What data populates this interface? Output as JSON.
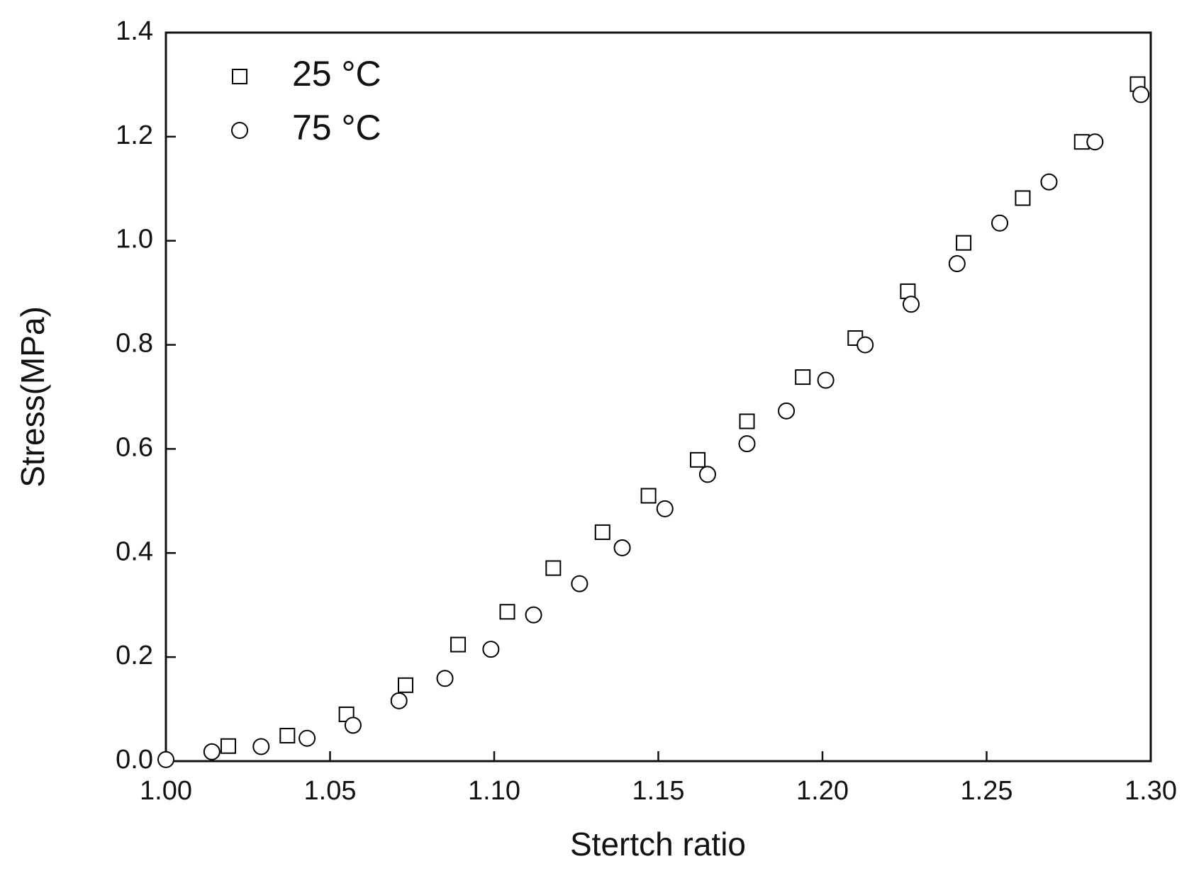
{
  "chart_data": {
    "type": "scatter",
    "x_label": "Stertch ratio",
    "y_label": "Stress(MPa)",
    "xlim": [
      1.0,
      1.3
    ],
    "ylim": [
      0,
      1.4
    ],
    "xticks": [
      {
        "value": 1.0,
        "label": "1.00"
      },
      {
        "value": 1.05,
        "label": "1.05"
      },
      {
        "value": 1.1,
        "label": "1.10"
      },
      {
        "value": 1.15,
        "label": "1.15"
      },
      {
        "value": 1.2,
        "label": "1.20"
      },
      {
        "value": 1.25,
        "label": "1.25"
      },
      {
        "value": 1.3,
        "label": "1.30"
      }
    ],
    "yticks": [
      {
        "value": 0,
        "label": "0.0"
      },
      0.2,
      0.4,
      0.6,
      0.8,
      {
        "value": 1,
        "label": "1.0"
      },
      1.2,
      1.4
    ],
    "legend": "top-left",
    "series": [
      {
        "name": "25 °C",
        "marker": "square",
        "color": "#000000",
        "x": [
          1.019,
          1.037,
          1.055,
          1.073,
          1.089,
          1.104,
          1.118,
          1.133,
          1.147,
          1.162,
          1.177,
          1.194,
          1.21,
          1.226,
          1.243,
          1.261,
          1.279,
          1.296
        ],
        "values": [
          0.029,
          0.049,
          0.09,
          0.146,
          0.224,
          0.287,
          0.371,
          0.44,
          0.51,
          0.579,
          0.653,
          0.738,
          0.813,
          0.903,
          0.996,
          1.082,
          1.19,
          1.301
        ]
      },
      {
        "name": "75 °C",
        "marker": "circle",
        "color": "#000000",
        "x": [
          1.0,
          1.014,
          1.029,
          1.043,
          1.057,
          1.071,
          1.085,
          1.099,
          1.112,
          1.126,
          1.139,
          1.152,
          1.165,
          1.177,
          1.189,
          1.201,
          1.213,
          1.227,
          1.241,
          1.254,
          1.269,
          1.283,
          1.297
        ],
        "values": [
          0.003,
          0.018,
          0.028,
          0.044,
          0.069,
          0.116,
          0.159,
          0.215,
          0.281,
          0.341,
          0.41,
          0.485,
          0.551,
          0.61,
          0.673,
          0.732,
          0.8,
          0.878,
          0.956,
          1.034,
          1.113,
          1.19,
          1.281
        ]
      }
    ]
  }
}
